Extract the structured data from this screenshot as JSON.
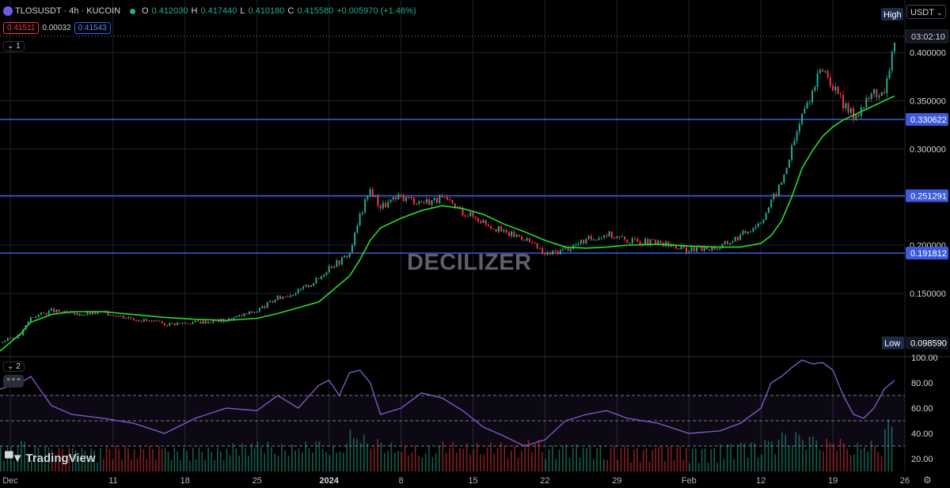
{
  "header": {
    "symbol": "TLOSUSDT · 4h · KUCOIN",
    "open": "O",
    "open_value": "0.412030",
    "high": "H",
    "high_value": "0.417440",
    "low": "L",
    "low_value": "0.410180",
    "close": "C",
    "close_value": "0.415580",
    "change": "+0.005970 (+1.46%)",
    "sell_price": "0.41511",
    "spread": "0.00032",
    "buy_price": "0.41543",
    "pane1_collapse": "1",
    "pane2_collapse": "2",
    "more": "∘∘∘"
  },
  "currency": "USDT",
  "watermark": "DECILIZER",
  "branding": "TradingView",
  "settings_icon": "gear-icon",
  "colors": {
    "background": "#000000",
    "up": "#22ab94",
    "down": "#f23645",
    "ma": "#2bd92b",
    "level_line": "#3b5bdb",
    "rsi": "#7e57c2"
  },
  "chart_data": [
    {
      "type": "candlestick",
      "title": "TLOSUSDT · 4h · KUCOIN",
      "x_range": [
        "2023-11-30",
        "2024-02-26"
      ],
      "xticks": [
        "Dec",
        "11",
        "18",
        "25",
        "2024",
        "8",
        "15",
        "22",
        "29",
        "Feb",
        "12",
        "19",
        "26"
      ],
      "ylim": [
        0.085,
        0.43
      ],
      "yticks": [
        "0.150000",
        "0.200000",
        "0.250000",
        "0.300000",
        "0.350000",
        "0.400000"
      ],
      "grid": true,
      "price_series": {
        "name": "TLOSUSDT",
        "x": [
          "2023-11-30",
          "2023-12-02",
          "2023-12-03",
          "2023-12-05",
          "2023-12-07",
          "2023-12-10",
          "2023-12-13",
          "2023-12-16",
          "2023-12-19",
          "2023-12-22",
          "2023-12-25",
          "2023-12-27",
          "2023-12-29",
          "2023-12-31",
          "2024-01-01",
          "2024-01-02",
          "2024-01-03",
          "2024-01-04",
          "2024-01-05",
          "2024-01-06",
          "2024-01-08",
          "2024-01-10",
          "2024-01-12",
          "2024-01-14",
          "2024-01-16",
          "2024-01-18",
          "2024-01-20",
          "2024-01-22",
          "2024-01-24",
          "2024-01-26",
          "2024-01-28",
          "2024-01-30",
          "2024-02-02",
          "2024-02-05",
          "2024-02-08",
          "2024-02-10",
          "2024-02-12",
          "2024-02-13",
          "2024-02-14",
          "2024-02-15",
          "2024-02-16",
          "2024-02-17",
          "2024-02-18",
          "2024-02-19",
          "2024-02-20",
          "2024-02-21",
          "2024-02-22",
          "2024-02-23",
          "2024-02-24",
          "2024-02-25"
        ],
        "close": [
          0.099,
          0.107,
          0.125,
          0.132,
          0.128,
          0.13,
          0.124,
          0.118,
          0.12,
          0.122,
          0.132,
          0.145,
          0.152,
          0.165,
          0.178,
          0.183,
          0.192,
          0.23,
          0.258,
          0.24,
          0.25,
          0.245,
          0.248,
          0.235,
          0.225,
          0.213,
          0.208,
          0.19,
          0.196,
          0.205,
          0.212,
          0.205,
          0.202,
          0.195,
          0.198,
          0.21,
          0.225,
          0.245,
          0.265,
          0.3,
          0.335,
          0.36,
          0.385,
          0.365,
          0.345,
          0.335,
          0.345,
          0.36,
          0.355,
          0.415
        ]
      },
      "ma_series": {
        "name": "MA",
        "close": [
          0.09,
          0.108,
          0.12,
          0.128,
          0.131,
          0.131,
          0.128,
          0.125,
          0.123,
          0.122,
          0.124,
          0.129,
          0.135,
          0.141,
          0.15,
          0.159,
          0.168,
          0.185,
          0.205,
          0.218,
          0.228,
          0.236,
          0.241,
          0.238,
          0.232,
          0.222,
          0.214,
          0.205,
          0.198,
          0.197,
          0.198,
          0.2,
          0.201,
          0.199,
          0.198,
          0.198,
          0.202,
          0.21,
          0.225,
          0.25,
          0.28,
          0.298,
          0.313,
          0.323,
          0.33,
          0.335,
          0.34,
          0.345,
          0.35,
          0.355
        ]
      },
      "levels": [
        0.330622,
        0.251291,
        0.191812
      ],
      "level_labels": [
        "0.330622",
        "0.251291",
        "0.191812"
      ],
      "high_label": "High",
      "low_label": "Low",
      "low_value": "0.098590",
      "countdown": "03:02:10"
    },
    {
      "type": "line",
      "name": "RSI",
      "ylim": [
        10,
        100
      ],
      "yticks": [
        "20.00",
        "40.00",
        "60.00",
        "80.00",
        "100.00"
      ],
      "bands": [
        30,
        50,
        70
      ],
      "x": [
        "2023-11-30",
        "2023-12-02",
        "2023-12-03",
        "2023-12-05",
        "2023-12-07",
        "2023-12-10",
        "2023-12-13",
        "2023-12-16",
        "2023-12-19",
        "2023-12-22",
        "2023-12-25",
        "2023-12-27",
        "2023-12-29",
        "2023-12-31",
        "2024-01-01",
        "2024-01-02",
        "2024-01-03",
        "2024-01-04",
        "2024-01-05",
        "2024-01-06",
        "2024-01-08",
        "2024-01-10",
        "2024-01-12",
        "2024-01-14",
        "2024-01-16",
        "2024-01-18",
        "2024-01-20",
        "2024-01-22",
        "2024-01-24",
        "2024-01-26",
        "2024-01-28",
        "2024-01-30",
        "2024-02-02",
        "2024-02-05",
        "2024-02-08",
        "2024-02-10",
        "2024-02-12",
        "2024-02-13",
        "2024-02-14",
        "2024-02-15",
        "2024-02-16",
        "2024-02-17",
        "2024-02-18",
        "2024-02-19",
        "2024-02-20",
        "2024-02-21",
        "2024-02-22",
        "2024-02-23",
        "2024-02-24",
        "2024-02-25"
      ],
      "values": [
        75,
        80,
        85,
        62,
        55,
        52,
        48,
        40,
        52,
        60,
        58,
        70,
        60,
        78,
        82,
        70,
        88,
        90,
        80,
        55,
        60,
        72,
        68,
        58,
        45,
        38,
        30,
        35,
        50,
        55,
        58,
        52,
        48,
        40,
        42,
        48,
        60,
        80,
        85,
        92,
        98,
        95,
        96,
        90,
        70,
        55,
        52,
        60,
        75,
        82
      ]
    }
  ]
}
